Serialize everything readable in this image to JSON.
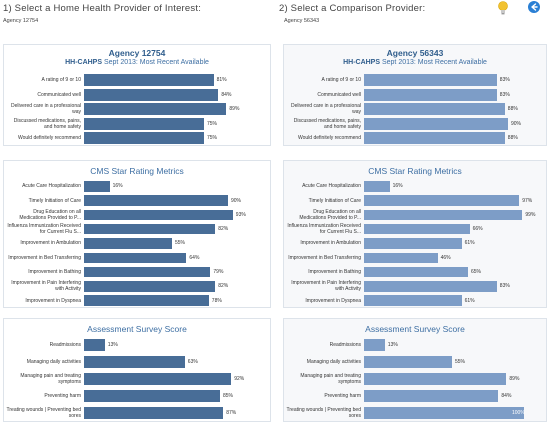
{
  "header": {
    "select_provider_label": "1) Select a Home Health Provider of Interest:",
    "selected_provider": "Agency 12754",
    "select_comparison_label": "2) Select a Comparison Provider:",
    "selected_comparison": "Agency 56343"
  },
  "colors": {
    "left_bar": "#486d97",
    "right_bar": "#7d9dc7"
  },
  "providers": [
    {
      "side": "left",
      "agency_title": "Agency 12754",
      "hhcaps_title": "HH-CAHPS",
      "hhcaps_subtitle": "Sept 2013: Most Recent Available",
      "hhcaps": [
        {
          "label": "A rating of 9 or 10",
          "value": 81
        },
        {
          "label": "Communicated well",
          "value": 84
        },
        {
          "label": "Delivered care in a professional way",
          "value": 89
        },
        {
          "label": "Discussed medications, pains, and home safety",
          "value": 75
        },
        {
          "label": "Would definitely recommend",
          "value": 75
        }
      ],
      "cms_title": "CMS Star Rating Metrics",
      "cms": [
        {
          "label": "Acute Care Hospitalization",
          "value": 16
        },
        {
          "label": "Timely Initiation of Care",
          "value": 90
        },
        {
          "label": "Drug Education on all Medications Provided to P...",
          "value": 93
        },
        {
          "label": "Influenza Immunization Received for Current Flu S...",
          "value": 82
        },
        {
          "label": "Improvement in Ambulation",
          "value": 55
        },
        {
          "label": "Improvement in Bed Transferring",
          "value": 64
        },
        {
          "label": "Improvement in Bathing",
          "value": 79
        },
        {
          "label": "Improvement in Pain Interfering with Activity",
          "value": 82
        },
        {
          "label": "Improvement in Dyspnea",
          "value": 78
        }
      ],
      "assess_title": "Assessment Survey Score",
      "assess": [
        {
          "label": "Readmissions",
          "value": 13
        },
        {
          "label": "Managing daily activities",
          "value": 63
        },
        {
          "label": "Managing pain and treating symptoms",
          "value": 92
        },
        {
          "label": "Preventing harm",
          "value": 85
        },
        {
          "label": "Treating wounds | Preventing bed sores",
          "value": 87
        }
      ]
    },
    {
      "side": "right",
      "agency_title": "Agency 56343",
      "hhcaps_title": "HH-CAHPS",
      "hhcaps_subtitle": "Sept 2013: Most Recent Available",
      "hhcaps": [
        {
          "label": "A rating of 9 or 10",
          "value": 83
        },
        {
          "label": "Communicated well",
          "value": 83
        },
        {
          "label": "Delivered care in a professional way",
          "value": 88
        },
        {
          "label": "Discussed medications, pains, and home safety",
          "value": 90
        },
        {
          "label": "Would definitely recommend",
          "value": 88
        }
      ],
      "cms_title": "CMS Star Rating Metrics",
      "cms": [
        {
          "label": "Acute Care Hospitalization",
          "value": 16
        },
        {
          "label": "Timely Initiation of Care",
          "value": 97
        },
        {
          "label": "Drug Education on all Medications Provided to P...",
          "value": 99
        },
        {
          "label": "Influenza Immunization Received for Current Flu S...",
          "value": 66
        },
        {
          "label": "Improvement in Ambulation",
          "value": 61
        },
        {
          "label": "Improvement in Bed Transferring",
          "value": 46
        },
        {
          "label": "Improvement in Bathing",
          "value": 65
        },
        {
          "label": "Improvement in Pain Interfering with Activity",
          "value": 83
        },
        {
          "label": "Improvement in Dyspnea",
          "value": 61
        }
      ],
      "assess_title": "Assessment Survey Score",
      "assess": [
        {
          "label": "Readmissions",
          "value": 13
        },
        {
          "label": "Managing daily activities",
          "value": 55
        },
        {
          "label": "Managing pain and treating symptoms",
          "value": 89
        },
        {
          "label": "Preventing harm",
          "value": 84
        },
        {
          "label": "Treating wounds | Preventing bed sores",
          "value": 100
        }
      ]
    }
  ]
}
